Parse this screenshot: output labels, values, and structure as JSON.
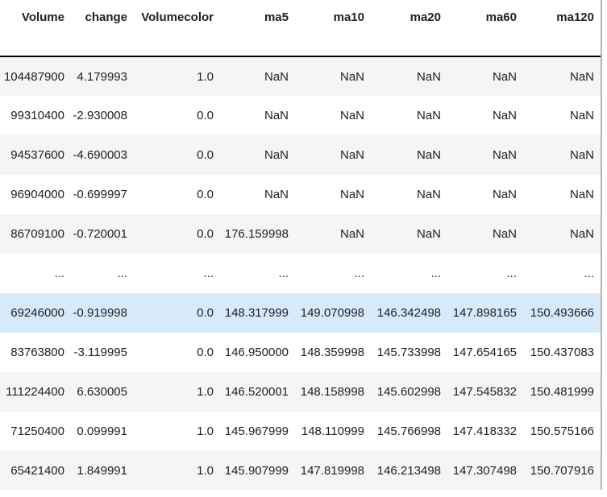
{
  "chart_data": {
    "type": "table",
    "title": "",
    "columns": [
      "Volume",
      "change",
      "Volumecolor",
      "ma5",
      "ma10",
      "ma20",
      "ma60",
      "ma120"
    ],
    "highlighted_row_index": 6,
    "rows": [
      {
        "variant": "striped",
        "cells": [
          "104487900",
          "4.179993",
          "1.0",
          "NaN",
          "NaN",
          "NaN",
          "NaN",
          "NaN"
        ]
      },
      {
        "variant": "plain",
        "cells": [
          "99310400",
          "-2.930008",
          "0.0",
          "NaN",
          "NaN",
          "NaN",
          "NaN",
          "NaN"
        ]
      },
      {
        "variant": "striped",
        "cells": [
          "94537600",
          "-4.690003",
          "0.0",
          "NaN",
          "NaN",
          "NaN",
          "NaN",
          "NaN"
        ]
      },
      {
        "variant": "plain",
        "cells": [
          "96904000",
          "-0.699997",
          "0.0",
          "NaN",
          "NaN",
          "NaN",
          "NaN",
          "NaN"
        ]
      },
      {
        "variant": "striped",
        "cells": [
          "86709100",
          "-0.720001",
          "0.0",
          "176.159998",
          "NaN",
          "NaN",
          "NaN",
          "NaN"
        ]
      },
      {
        "variant": "plain",
        "cells": [
          "...",
          "...",
          "...",
          "...",
          "...",
          "...",
          "...",
          "..."
        ]
      },
      {
        "variant": "highlighted",
        "cells": [
          "69246000",
          "-0.919998",
          "0.0",
          "148.317999",
          "149.070998",
          "146.342498",
          "147.898165",
          "150.493666"
        ]
      },
      {
        "variant": "plain",
        "cells": [
          "83763800",
          "-3.119995",
          "0.0",
          "146.950000",
          "148.359998",
          "145.733998",
          "147.654165",
          "150.437083"
        ]
      },
      {
        "variant": "striped",
        "cells": [
          "111224400",
          "6.630005",
          "1.0",
          "146.520001",
          "148.158998",
          "145.602998",
          "147.545832",
          "150.481999"
        ]
      },
      {
        "variant": "plain",
        "cells": [
          "71250400",
          "0.099991",
          "1.0",
          "145.967999",
          "148.110999",
          "145.766998",
          "147.418332",
          "150.575166"
        ]
      },
      {
        "variant": "striped",
        "cells": [
          "65421400",
          "1.849991",
          "1.0",
          "145.907999",
          "147.819998",
          "146.213498",
          "147.307498",
          "150.707916"
        ]
      }
    ]
  },
  "colors": {
    "stripe": "#f5f5f5",
    "highlight": "#d7eafa",
    "header_border": "#000000",
    "text": "#212121",
    "right_border": "#b2b2b2",
    "bg": "#ffffff"
  }
}
